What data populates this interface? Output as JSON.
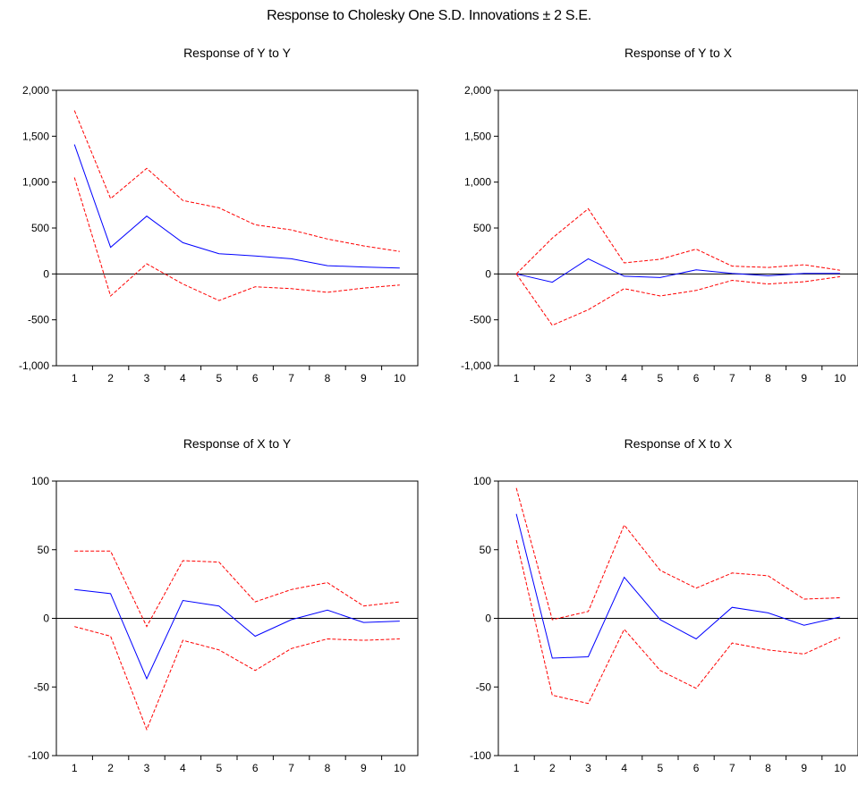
{
  "title": "Response to Cholesky One S.D. Innovations ± 2 S.E.",
  "colors": {
    "response": "#0000ff",
    "bands": "#ff0000",
    "axis": "#000000"
  },
  "chart_data": [
    {
      "type": "line",
      "title": "Response of Y to Y",
      "categories": [
        "1",
        "2",
        "3",
        "4",
        "5",
        "6",
        "7",
        "8",
        "9",
        "10"
      ],
      "ylim": [
        -1000,
        2000
      ],
      "yticks": [
        -1000,
        -500,
        0,
        500,
        1000,
        1500,
        2000
      ],
      "ytick_labels": [
        "-1,000",
        "-500",
        "0",
        "500",
        "1,000",
        "1,500",
        "2,000"
      ],
      "series": [
        {
          "role": "response",
          "values": [
            1410,
            290,
            630,
            340,
            220,
            195,
            165,
            90,
            75,
            65
          ]
        },
        {
          "role": "upper",
          "values": [
            1780,
            820,
            1150,
            800,
            720,
            535,
            480,
            380,
            305,
            245
          ]
        },
        {
          "role": "lower",
          "values": [
            1050,
            -240,
            110,
            -110,
            -290,
            -140,
            -160,
            -200,
            -155,
            -120
          ]
        }
      ]
    },
    {
      "type": "line",
      "title": "Response of Y to X",
      "categories": [
        "1",
        "2",
        "3",
        "4",
        "5",
        "6",
        "7",
        "8",
        "9",
        "10"
      ],
      "ylim": [
        -1000,
        2000
      ],
      "yticks": [
        -1000,
        -500,
        0,
        500,
        1000,
        1500,
        2000
      ],
      "ytick_labels": [
        "-1,000",
        "-500",
        "0",
        "500",
        "1,000",
        "1,500",
        "2,000"
      ],
      "series": [
        {
          "role": "response",
          "values": [
            0,
            -90,
            165,
            -25,
            -40,
            45,
            5,
            -20,
            5,
            5
          ]
        },
        {
          "role": "upper",
          "values": [
            0,
            390,
            710,
            120,
            160,
            270,
            85,
            70,
            100,
            40
          ]
        },
        {
          "role": "lower",
          "values": [
            0,
            -560,
            -390,
            -160,
            -240,
            -180,
            -70,
            -110,
            -85,
            -30
          ]
        }
      ]
    },
    {
      "type": "line",
      "title": "Response of X to Y",
      "categories": [
        "1",
        "2",
        "3",
        "4",
        "5",
        "6",
        "7",
        "8",
        "9",
        "10"
      ],
      "ylim": [
        -100,
        100
      ],
      "yticks": [
        -100,
        -50,
        0,
        50,
        100
      ],
      "ytick_labels": [
        "-100",
        "-50",
        "0",
        "50",
        "100"
      ],
      "series": [
        {
          "role": "response",
          "values": [
            21,
            18,
            -44,
            13,
            9,
            -13,
            -1,
            6,
            -3,
            -2
          ]
        },
        {
          "role": "upper",
          "values": [
            49,
            49,
            -6,
            42,
            41,
            12,
            21,
            26,
            9,
            12
          ]
        },
        {
          "role": "lower",
          "values": [
            -6,
            -13,
            -81,
            -16,
            -23,
            -38,
            -22,
            -15,
            -16,
            -15
          ]
        }
      ]
    },
    {
      "type": "line",
      "title": "Response of X to X",
      "categories": [
        "1",
        "2",
        "3",
        "4",
        "5",
        "6",
        "7",
        "8",
        "9",
        "10"
      ],
      "ylim": [
        -100,
        100
      ],
      "yticks": [
        -100,
        -50,
        0,
        50,
        100
      ],
      "ytick_labels": [
        "-100",
        "-50",
        "0",
        "50",
        "100"
      ],
      "series": [
        {
          "role": "response",
          "values": [
            76,
            -29,
            -28,
            30,
            -1,
            -15,
            8,
            4,
            -5,
            1
          ]
        },
        {
          "role": "upper",
          "values": [
            95,
            -1,
            5,
            68,
            35,
            22,
            33,
            31,
            14,
            15
          ]
        },
        {
          "role": "lower",
          "values": [
            57,
            -56,
            -62,
            -8,
            -38,
            -51,
            -18,
            -23,
            -26,
            -14
          ]
        }
      ]
    }
  ]
}
